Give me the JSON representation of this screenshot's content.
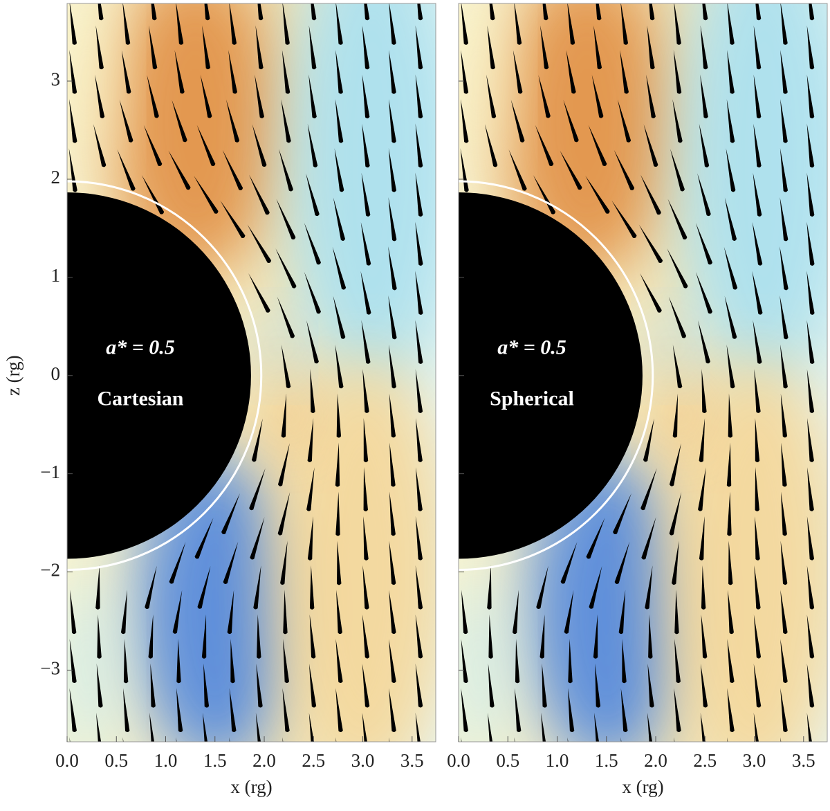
{
  "chart_data": [
    {
      "type": "field",
      "annotations": [
        "a* = 0.5",
        "Cartesian"
      ],
      "xlabel": "x (rg)",
      "ylabel": "z (rg)",
      "xlim": [
        0,
        3.74
      ],
      "ylim": [
        -3.73,
        3.79
      ],
      "xticks": [
        {
          "value": 0,
          "label": "0.0"
        },
        {
          "value": 0.5,
          "label": "0.5"
        },
        {
          "value": 1,
          "label": "1.0"
        },
        {
          "value": 1.5,
          "label": "1.5"
        },
        {
          "value": 2,
          "label": "2.0"
        },
        {
          "value": 2.5,
          "label": "2.5"
        },
        {
          "value": 3,
          "label": "3.0"
        },
        {
          "value": 3.5,
          "label": "3.5"
        }
      ],
      "yticks": [
        {
          "value": -3,
          "label": "−3"
        },
        {
          "value": -2,
          "label": "−2"
        },
        {
          "value": -1,
          "label": "−1"
        },
        0,
        1,
        2,
        3
      ]
    },
    {
      "type": "field",
      "annotations": [
        "a* = 0.5",
        "Spherical"
      ],
      "xlabel": "x (rg)",
      "xlim": [
        0,
        3.74
      ],
      "ylim": [
        -3.73,
        3.79
      ],
      "xticks": [
        {
          "value": 0,
          "label": "0.0"
        },
        {
          "value": 0.5,
          "label": "0.5"
        },
        {
          "value": 1,
          "label": "1.0"
        },
        {
          "value": 1.5,
          "label": "1.5"
        },
        {
          "value": 2,
          "label": "2.0"
        },
        {
          "value": 2.5,
          "label": "2.5"
        },
        {
          "value": 3,
          "label": "3.0"
        },
        {
          "value": 3.5,
          "label": "3.5"
        }
      ],
      "yticks": [
        -3,
        -2,
        -1,
        0,
        1,
        2,
        3
      ]
    }
  ]
}
